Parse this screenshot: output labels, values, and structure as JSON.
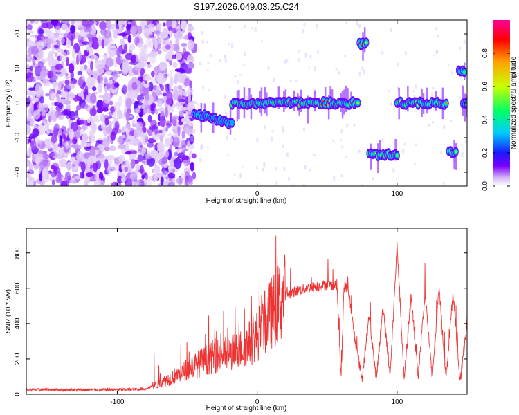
{
  "figure_title": "S197.2026.049.03.25.C24",
  "colors": {
    "snr_line": "#ee3333",
    "colormap": [
      "#ffffff",
      "#d6b8f5",
      "#7a00ff",
      "#1a1aff",
      "#00ccff",
      "#00ff66",
      "#c8ff00",
      "#ffa000",
      "#ff0000",
      "#ff0099"
    ]
  },
  "chart_data": [
    {
      "type": "heatmap",
      "title": "",
      "xlabel": "Height of straight line (km)",
      "ylabel": "Frequency (Hz)",
      "xlim": [
        -165,
        150
      ],
      "ylim": [
        -24,
        24
      ],
      "xticks": [
        -100,
        0,
        100
      ],
      "yticks": [
        -20,
        -10,
        0,
        10,
        20
      ],
      "colorbar": {
        "label": "Normalized spectral amplitude",
        "range": [
          0,
          1
        ],
        "ticks": [
          "0.0",
          "0.2",
          "0.4",
          "0.6",
          "0.8"
        ]
      },
      "noise_region_km": [
        -165,
        -45
      ],
      "features": [
        {
          "x_start": -45,
          "x_end": -18,
          "freq_start": -3,
          "freq_end": -6,
          "peak": 0.35
        },
        {
          "x_start": -18,
          "x_end": 72,
          "freq_start": 0,
          "freq_end": 0,
          "peak": 0.95
        },
        {
          "x_start": 73,
          "x_end": 78,
          "freq_start": 17,
          "freq_end": 17,
          "peak": 0.85
        },
        {
          "x_start": 80,
          "x_end": 100,
          "freq_start": -15,
          "freq_end": -15,
          "peak": 0.75
        },
        {
          "x_start": 100,
          "x_end": 135,
          "freq_start": 0,
          "freq_end": 0,
          "peak": 0.8
        },
        {
          "x_start": 137,
          "x_end": 142,
          "freq_start": -14,
          "freq_end": -14,
          "peak": 0.85
        },
        {
          "x_start": 144,
          "x_end": 148,
          "freq_start": 9,
          "freq_end": 9,
          "peak": 0.6
        },
        {
          "x_start": 147,
          "x_end": 150,
          "freq_start": 0,
          "freq_end": 0,
          "peak": 0.5
        }
      ]
    },
    {
      "type": "line",
      "title": "",
      "xlabel": "Height of straight line (km)",
      "ylabel": "SNR (10 * v/v)",
      "xlim": [
        -165,
        150
      ],
      "ylim": [
        0,
        940
      ],
      "xticks": [
        -100,
        0,
        100
      ],
      "yticks": [
        0,
        200,
        400,
        600,
        800
      ],
      "series": [
        {
          "name": "SNR",
          "x": [
            -165,
            -150,
            -130,
            -110,
            -90,
            -80,
            -70,
            -60,
            -50,
            -40,
            -30,
            -20,
            -10,
            0,
            10,
            20,
            30,
            40,
            50,
            57,
            60,
            62,
            65,
            70,
            75,
            80,
            85,
            90,
            95,
            100,
            105,
            110,
            115,
            120,
            125,
            130,
            135,
            140,
            145,
            150
          ],
          "y": [
            25,
            25,
            25,
            25,
            27,
            30,
            60,
            100,
            140,
            180,
            220,
            230,
            260,
            330,
            460,
            560,
            590,
            610,
            620,
            620,
            70,
            610,
            600,
            300,
            90,
            450,
            80,
            500,
            100,
            850,
            80,
            560,
            100,
            580,
            90,
            600,
            85,
            580,
            60,
            420
          ]
        }
      ]
    }
  ]
}
